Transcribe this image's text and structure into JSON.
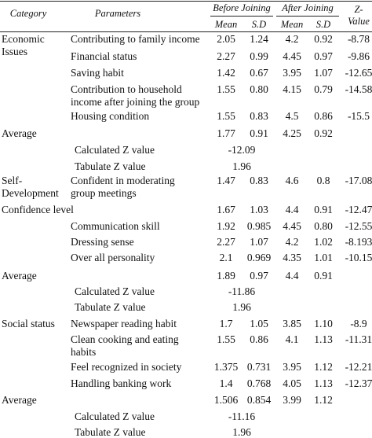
{
  "table": {
    "header": {
      "category": "Category",
      "parameters": "Parameters",
      "before": "Before Joining",
      "after": "After Joining",
      "z": [
        "Z-",
        "Value"
      ],
      "sub": [
        "Mean",
        "S.D",
        "Mean",
        "S.D"
      ]
    },
    "rows": [
      {
        "category": [
          "Economic",
          "Issues"
        ],
        "parameter": [
          "Contributing to family income"
        ],
        "cells": {
          "before_mean": "2.05",
          "before_sd": "1.24",
          "after_mean": "4.2",
          "after_sd": "0.92",
          "z_value": "-8.78"
        }
      },
      {
        "parameter": [
          "Financial status"
        ],
        "cells": {
          "before_mean": "2.27",
          "before_sd": "0.99",
          "after_mean": "4.45",
          "after_sd": "0.97",
          "z_value": "-9.86"
        }
      },
      {
        "parameter": [
          "Saving habit"
        ],
        "cells": {
          "before_mean": "1.42",
          "before_sd": "0.67",
          "after_mean": "3.95",
          "after_sd": "1.07",
          "z_value": "-12.65"
        }
      },
      {
        "parameter": [
          "Contribution to household",
          "income after joining the group"
        ],
        "cells": {
          "before_mean": "1.55",
          "before_sd": "0.80",
          "after_mean": "4.15",
          "after_sd": "0.79",
          "z_value": "-14.58"
        }
      },
      {
        "parameter": [
          "Housing condition"
        ],
        "cells": {
          "before_mean": "1.55",
          "before_sd": "0.83",
          "after_mean": "4.5",
          "after_sd": "0.86",
          "z_value": "-15.5"
        }
      },
      {
        "category": [
          "Average"
        ],
        "cells": {
          "before_mean": "1.77",
          "before_sd": "0.91",
          "after_mean": "4.25",
          "after_sd": "0.92"
        }
      },
      {
        "parameter": [
          "Calculated Z value"
        ],
        "cells": {
          "combined": "-12.09"
        }
      },
      {
        "parameter": [
          "Tabulate Z value"
        ],
        "cells": {
          "combined": "1.96"
        }
      },
      {
        "category": [
          "Self-",
          "Development"
        ],
        "parameter": [
          "Confident in moderating",
          "group meetings"
        ],
        "cells": {
          "before_mean": "1.47",
          "before_sd": "0.83",
          "after_mean": "4.6",
          "after_sd": "0.8",
          "z_value": "-17.08"
        }
      },
      {
        "category": [
          "Confidence level"
        ],
        "cells": {
          "before_mean": "1.67",
          "before_sd": "1.03",
          "after_mean": "4.4",
          "after_sd": "0.91",
          "z_value": "-12.47"
        }
      },
      {
        "parameter": [
          "Communication skill"
        ],
        "cells": {
          "before_mean": "1.92",
          "before_sd": "0.985",
          "after_mean": "4.45",
          "after_sd": "0.80",
          "z_value": "-12.55"
        }
      },
      {
        "parameter": [
          "Dressing sense"
        ],
        "cells": {
          "before_mean": "2.27",
          "before_sd": "1.07",
          "after_mean": "4.2",
          "after_sd": "1.02",
          "z_value": "-8.193"
        }
      },
      {
        "parameter": [
          "Over all personality"
        ],
        "cells": {
          "before_mean": "2.1",
          "before_sd": "0.969",
          "after_mean": "4.35",
          "after_sd": "1.01",
          "z_value": "-10.15"
        }
      },
      {
        "category": [
          "Average"
        ],
        "cells": {
          "before_mean": "1.89",
          "before_sd": "0.97",
          "after_mean": "4.4",
          "after_sd": "0.91"
        }
      },
      {
        "parameter": [
          "Calculated Z value"
        ],
        "cells": {
          "combined": "-11.86"
        }
      },
      {
        "parameter": [
          "Tabulate Z value"
        ],
        "cells": {
          "combined": "1.96"
        }
      },
      {
        "category": [
          "Social status"
        ],
        "parameter": [
          "Newspaper reading habit"
        ],
        "cells": {
          "before_mean": "1.7",
          "before_sd": "1.05",
          "after_mean": "3.85",
          "after_sd": "1.10",
          "z_value": "-8.9"
        }
      },
      {
        "parameter": [
          "Clean cooking and eating",
          "habits"
        ],
        "cells": {
          "before_mean": "1.55",
          "before_sd": "0.86",
          "after_mean": "4.1",
          "after_sd": "1.13",
          "z_value": "-11.31"
        }
      },
      {
        "parameter": [
          "Feel recognized in society"
        ],
        "cells": {
          "before_mean": "1.375",
          "before_sd": "0.731",
          "after_mean": "3.95",
          "after_sd": "1.12",
          "z_value": "-12.21"
        }
      },
      {
        "parameter": [
          "Handling banking work"
        ],
        "cells": {
          "before_mean": "1.4",
          "before_sd": "0.768",
          "after_mean": "4.05",
          "after_sd": "1.13",
          "z_value": "-12.37"
        }
      },
      {
        "category": [
          "Average"
        ],
        "cells": {
          "before_mean": "1.506",
          "before_sd": "0.854",
          "after_mean": "3.99",
          "after_sd": "1.12"
        }
      },
      {
        "parameter": [
          "Calculated Z value"
        ],
        "cells": {
          "combined": "-11.16"
        }
      },
      {
        "parameter": [
          "Tabulate Z value"
        ],
        "cells": {
          "combined": "1.96"
        }
      }
    ]
  }
}
